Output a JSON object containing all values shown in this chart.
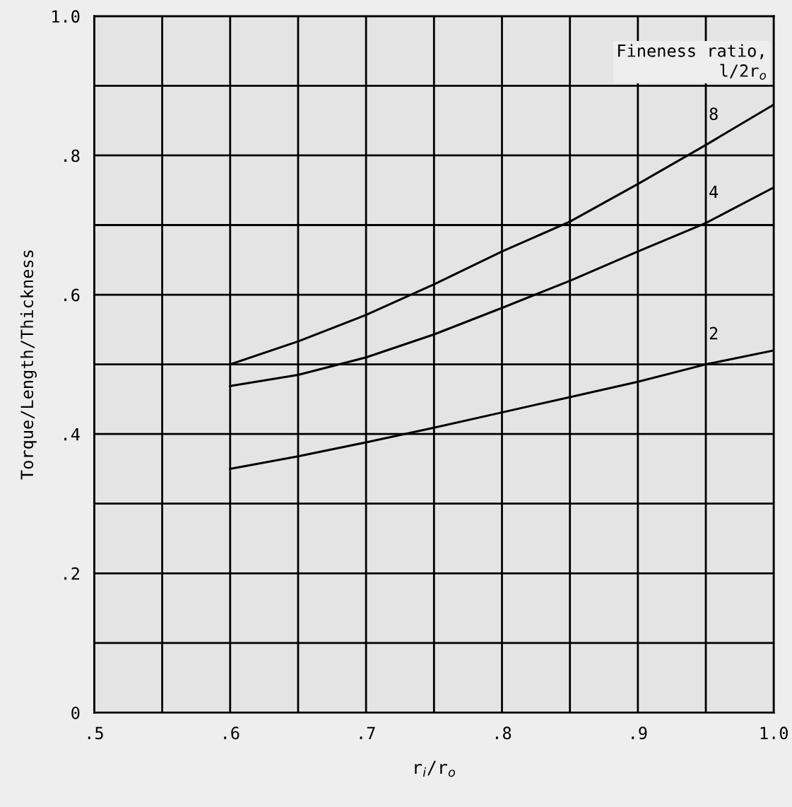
{
  "chart_data": {
    "type": "line",
    "xlabel": "r$_{i}$/r$_{o}$",
    "ylabel": "Torque/Length/Thickness",
    "legend_title": "Fineness ratio,\nl/2r$_{o}$",
    "series": [
      {
        "name": "8",
        "color": "#000000",
        "x": [
          0.6,
          0.65,
          0.7,
          0.75,
          0.8,
          0.85,
          0.9,
          0.95,
          1.0
        ],
        "values": [
          0.5,
          0.533,
          0.571,
          0.615,
          0.662,
          0.705,
          0.759,
          0.815,
          0.873
        ]
      },
      {
        "name": "4",
        "color": "#000000",
        "x": [
          0.6,
          0.65,
          0.7,
          0.75,
          0.8,
          0.85,
          0.9,
          0.95,
          1.0
        ],
        "values": [
          0.469,
          0.485,
          0.51,
          0.543,
          0.581,
          0.62,
          0.662,
          0.703,
          0.754
        ]
      },
      {
        "name": "2",
        "color": "#000000",
        "x": [
          0.6,
          0.65,
          0.7,
          0.75,
          0.8,
          0.85,
          0.9,
          0.95,
          1.0
        ],
        "values": [
          0.35,
          0.368,
          0.388,
          0.409,
          0.431,
          0.453,
          0.475,
          0.5,
          0.52
        ]
      }
    ],
    "xlim": [
      0.5,
      1.0
    ],
    "ylim": [
      0,
      1.0
    ],
    "xticks": [
      {
        "value": 0.5,
        "label": ".5"
      },
      {
        "value": 0.55,
        "label": null
      },
      {
        "value": 0.6,
        "label": ".6"
      },
      {
        "value": 0.65,
        "label": null
      },
      {
        "value": 0.7,
        "label": ".7"
      },
      {
        "value": 0.75,
        "label": null
      },
      {
        "value": 0.8,
        "label": ".8"
      },
      {
        "value": 0.85,
        "label": null
      },
      {
        "value": 0.9,
        "label": ".9"
      },
      {
        "value": 0.95,
        "label": null
      },
      {
        "value": 1.0,
        "label": "1.0"
      }
    ],
    "yticks": [
      {
        "value": 0,
        "label": "0"
      },
      {
        "value": 0.1,
        "label": null
      },
      {
        "value": 0.2,
        "label": ".2"
      },
      {
        "value": 0.3,
        "label": null
      },
      {
        "value": 0.4,
        "label": ".4"
      },
      {
        "value": 0.5,
        "label": null
      },
      {
        "value": 0.6,
        "label": ".6"
      },
      {
        "value": 0.7,
        "label": null
      },
      {
        "value": 0.8,
        "label": ".8"
      },
      {
        "value": 0.9,
        "label": null
      },
      {
        "value": 1.0,
        "label": "1.0"
      }
    ],
    "grid": true,
    "line_style": "solid",
    "marker": "none"
  }
}
